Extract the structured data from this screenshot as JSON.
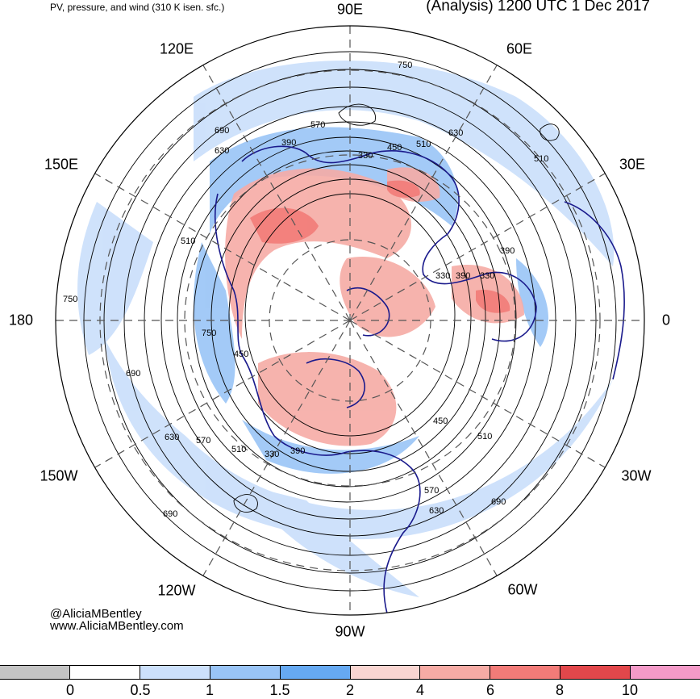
{
  "header": {
    "left_title": "PV, pressure, and wind (310 K isen. sfc.)",
    "right_title": "(Analysis) 1200 UTC 1 Dec 2017"
  },
  "map": {
    "projection": "north-polar-stereographic",
    "longitude_labels": {
      "top": "90E",
      "top_right": "60E",
      "right_upper": "30E",
      "right": "0",
      "right_lower": "30W",
      "bottom_right": "60W",
      "bottom": "90W",
      "bottom_left": "120W",
      "left_lower": "150W",
      "left": "180",
      "left_upper": "150E",
      "top_left": "120E"
    },
    "contour_labels": [
      "750",
      "690",
      "630",
      "390",
      "330",
      "450",
      "510",
      "570",
      "630",
      "510",
      "390",
      "330",
      "750",
      "510",
      "750",
      "450",
      "330",
      "390",
      "690",
      "630",
      "570",
      "510",
      "390",
      "330",
      "450",
      "510",
      "570",
      "630",
      "690",
      "690"
    ],
    "colors": {
      "coast": "#1a1a8c",
      "contour": "#000000",
      "grid": "#555555"
    }
  },
  "credits": {
    "handle": "@AliciaMBentley",
    "website": "www.AliciaMBentley.com"
  },
  "colorbar": {
    "bins": [
      {
        "color": "#c4c4c4"
      },
      {
        "color": "#ffffff"
      },
      {
        "color": "#cce0fb"
      },
      {
        "color": "#99c4f6"
      },
      {
        "color": "#66a9f2"
      },
      {
        "color": "#f9d5d1"
      },
      {
        "color": "#f6aba5"
      },
      {
        "color": "#f27b78"
      },
      {
        "color": "#e2474b"
      },
      {
        "color": "#f49ac8"
      }
    ],
    "ticks": [
      "0",
      "0.5",
      "1",
      "1.5",
      "2",
      "4",
      "6",
      "8",
      "10"
    ]
  }
}
